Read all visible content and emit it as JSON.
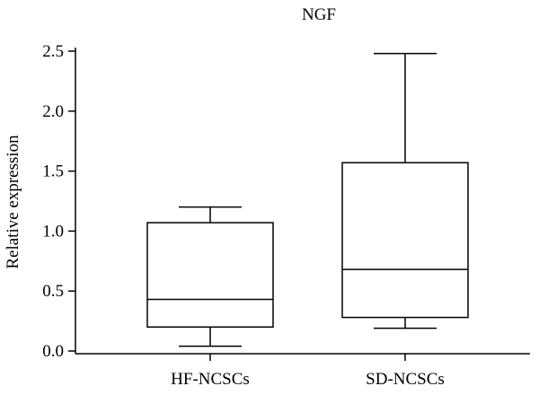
{
  "chart_data": {
    "type": "box",
    "title": "NGF",
    "xlabel": "",
    "ylabel": "Relative expression",
    "ylim": [
      0,
      2.5
    ],
    "yticks": [
      "0.0",
      "0.5",
      "1.0",
      "1.5",
      "2.0",
      "2.5"
    ],
    "categories": [
      "HF-NCSCs",
      "SD-NCSCs"
    ],
    "boxes": [
      {
        "category": "HF-NCSCs",
        "min": 0.04,
        "q1": 0.2,
        "median": 0.43,
        "q3": 1.07,
        "max": 1.2
      },
      {
        "category": "SD-NCSCs",
        "min": 0.19,
        "q1": 0.28,
        "median": 0.68,
        "q3": 1.57,
        "max": 2.48
      }
    ],
    "grid": false,
    "legend": "none",
    "color": "#000000"
  }
}
